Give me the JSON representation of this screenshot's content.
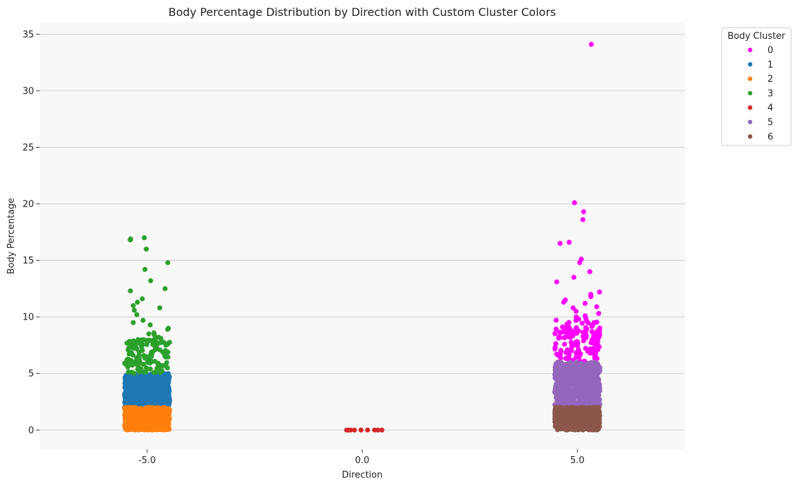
{
  "chart_data": {
    "type": "scatter",
    "subtype": "strip",
    "title": "Body Percentage Distribution by Direction with Custom Cluster Colors",
    "xlabel": "Direction",
    "ylabel": "Body Percentage",
    "categories": [
      "-5.0",
      "0.0",
      "5.0"
    ],
    "ylim": [
      -1.7,
      36.0
    ],
    "yticks": [
      0,
      5,
      10,
      15,
      20,
      25,
      30,
      35
    ],
    "grid": "horizontal",
    "background": "#f8f8f8",
    "legend": {
      "title": "Body Cluster",
      "placement": "outside-top-right",
      "entries": [
        "0",
        "1",
        "2",
        "3",
        "4",
        "5",
        "6"
      ]
    },
    "series": [
      {
        "name": "0",
        "color": "#ff00ff",
        "points": [
          [
            2,
            34.1
          ],
          [
            2,
            20.1
          ],
          [
            2,
            19.3
          ],
          [
            2,
            18.6
          ],
          [
            2,
            16.6
          ],
          [
            2,
            16.5
          ],
          [
            2,
            15.1
          ],
          [
            2,
            14.8
          ],
          [
            2,
            14.0
          ],
          [
            2,
            13.5
          ],
          [
            2,
            13.1
          ],
          [
            2,
            12.2
          ],
          [
            2,
            12.0
          ],
          [
            2,
            11.8
          ],
          [
            2,
            11.5
          ],
          [
            2,
            11.3
          ],
          [
            2,
            11.2
          ],
          [
            2,
            10.9
          ],
          [
            2,
            10.8
          ],
          [
            2,
            10.5
          ],
          [
            2,
            10.3
          ],
          [
            2,
            10.1
          ],
          [
            2,
            10.0
          ],
          [
            2,
            9.9
          ],
          [
            2,
            9.8
          ]
        ],
        "band": {
          "category": 2,
          "min": 6.0,
          "max": 9.8,
          "count": 140
        }
      },
      {
        "name": "1",
        "color": "#1f77b4",
        "band": {
          "category": 0,
          "min": 2.0,
          "max": 5.0,
          "count": 700
        }
      },
      {
        "name": "2",
        "color": "#ff7f0e",
        "band": {
          "category": 0,
          "min": 0.0,
          "max": 2.0,
          "count": 700
        }
      },
      {
        "name": "3",
        "color": "#2ca02c",
        "points": [
          [
            0,
            17.0
          ],
          [
            0,
            16.9
          ],
          [
            0,
            16.8
          ],
          [
            0,
            16.0
          ],
          [
            0,
            14.8
          ],
          [
            0,
            14.2
          ],
          [
            0,
            13.2
          ],
          [
            0,
            12.5
          ],
          [
            0,
            12.3
          ],
          [
            0,
            11.6
          ],
          [
            0,
            11.3
          ],
          [
            0,
            11.0
          ],
          [
            0,
            10.8
          ],
          [
            0,
            10.6
          ],
          [
            0,
            10.2
          ],
          [
            0,
            9.7
          ],
          [
            0,
            9.5
          ],
          [
            0,
            9.3
          ],
          [
            0,
            9.0
          ],
          [
            0,
            8.9
          ],
          [
            0,
            8.6
          ],
          [
            0,
            8.5
          ],
          [
            0,
            8.4
          ],
          [
            0,
            8.2
          ],
          [
            0,
            8.1
          ]
        ],
        "band": {
          "category": 0,
          "min": 5.0,
          "max": 8.1,
          "count": 130
        }
      },
      {
        "name": "4",
        "color": "#d62728",
        "points": [
          [
            1,
            0.0
          ],
          [
            1,
            0.0
          ],
          [
            1,
            0.0
          ],
          [
            1,
            0.0
          ],
          [
            1,
            0.0
          ],
          [
            1,
            0.0
          ],
          [
            1,
            0.0
          ],
          [
            1,
            0.0
          ],
          [
            1,
            0.0
          ]
        ]
      },
      {
        "name": "5",
        "color": "#9467bd",
        "band": {
          "category": 2,
          "min": 2.0,
          "max": 6.0,
          "count": 700
        }
      },
      {
        "name": "6",
        "color": "#8c564b",
        "band": {
          "category": 2,
          "min": 0.0,
          "max": 2.0,
          "count": 700
        }
      }
    ]
  }
}
